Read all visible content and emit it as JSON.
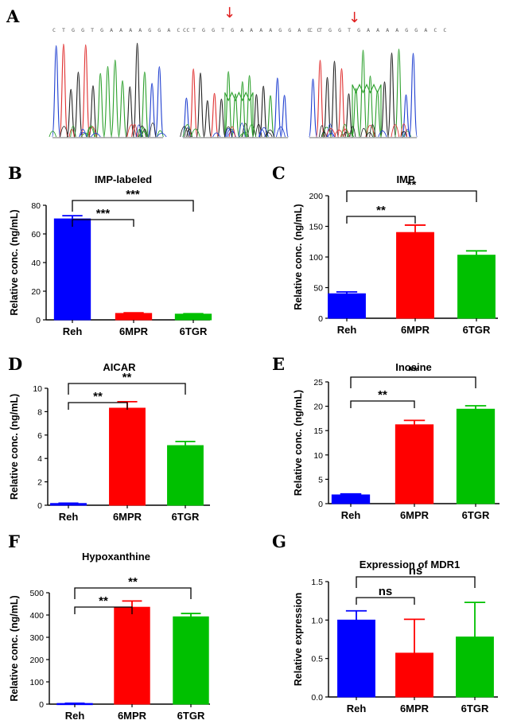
{
  "panel_a": {
    "letter": "A",
    "sequences": [
      "C T G G T G A A A A G G A C C",
      "C T G G T G A A A A G G A C C",
      "C T G G T G A A A A G G A C C"
    ],
    "arrow": "↓",
    "arrow_color": "#e02020",
    "trace_colors": {
      "A": "#2ca02c",
      "C": "#1f3fd0",
      "G": "#222222",
      "T": "#e03030"
    }
  },
  "colors": {
    "Reh": "#0000ff",
    "6MPR": "#ff0000",
    "6TGR": "#00c000"
  },
  "chart_data": [
    {
      "id": "B",
      "letter": "B",
      "type": "bar",
      "title": "IMP-labeled",
      "categories": [
        "Reh",
        "6MPR",
        "6TGR"
      ],
      "values": [
        70.5,
        4.5,
        4.0
      ],
      "errors": [
        2.2,
        0.4,
        0.3
      ],
      "ylabel": "Relative conc. (ng/mL)",
      "xlabel": "",
      "ylim": [
        0,
        80
      ],
      "yticks": [
        "0",
        "20",
        "40",
        "60",
        "80"
      ],
      "significance": [
        {
          "from": 0,
          "to": 1,
          "label": "***"
        },
        {
          "from": 0,
          "to": 2,
          "label": "***"
        }
      ]
    },
    {
      "id": "C",
      "letter": "C",
      "type": "bar",
      "title": "IMP",
      "categories": [
        "Reh",
        "6MPR",
        "6TGR"
      ],
      "values": [
        40,
        140,
        103
      ],
      "errors": [
        3,
        12,
        7
      ],
      "ylabel": "Relative conc. (ng/mL)",
      "xlabel": "",
      "ylim": [
        0,
        200
      ],
      "yticks": [
        "0",
        "50",
        "100",
        "150",
        "200"
      ],
      "significance": [
        {
          "from": 0,
          "to": 1,
          "label": "**"
        },
        {
          "from": 0,
          "to": 2,
          "label": "**"
        }
      ]
    },
    {
      "id": "D",
      "letter": "D",
      "type": "bar",
      "title": "AICAR",
      "categories": [
        "Reh",
        "6MPR",
        "6TGR"
      ],
      "values": [
        0.15,
        8.3,
        5.1
      ],
      "errors": [
        0.03,
        0.55,
        0.35
      ],
      "ylabel": "Relative conc. (ng/mL)",
      "xlabel": "",
      "ylim": [
        0,
        10
      ],
      "yticks": [
        "0",
        "2",
        "4",
        "6",
        "8",
        "10"
      ],
      "significance": [
        {
          "from": 0,
          "to": 1,
          "label": "**"
        },
        {
          "from": 0,
          "to": 2,
          "label": "**"
        }
      ]
    },
    {
      "id": "E",
      "letter": "E",
      "type": "bar",
      "title": "Inosine",
      "categories": [
        "Reh",
        "6MPR",
        "6TGR"
      ],
      "values": [
        1.8,
        16.2,
        19.4
      ],
      "errors": [
        0.2,
        0.9,
        0.7
      ],
      "ylabel": "Relative conc. (ng/mL)",
      "xlabel": "",
      "ylim": [
        0,
        25
      ],
      "yticks": [
        "0",
        "5",
        "10",
        "15",
        "20",
        "25"
      ],
      "significance": [
        {
          "from": 0,
          "to": 1,
          "label": "**"
        },
        {
          "from": 0,
          "to": 2,
          "label": "**"
        }
      ]
    },
    {
      "id": "F",
      "letter": "F",
      "type": "bar",
      "title": "Hypoxanthine",
      "categories": [
        "Reh",
        "6MPR",
        "6TGR"
      ],
      "values": [
        3,
        435,
        392
      ],
      "errors": [
        1,
        28,
        15
      ],
      "ylabel": "Relative conc. (ng/mL)",
      "xlabel": "",
      "ylim": [
        0,
        500
      ],
      "yticks": [
        "0",
        "100",
        "200",
        "300",
        "400",
        "500"
      ],
      "significance": [
        {
          "from": 0,
          "to": 1,
          "label": "**"
        },
        {
          "from": 0,
          "to": 2,
          "label": "**"
        }
      ]
    },
    {
      "id": "G",
      "letter": "G",
      "type": "bar",
      "title": "Expression of MDR1",
      "categories": [
        "Reh",
        "6MPR",
        "6TGR"
      ],
      "values": [
        1.0,
        0.57,
        0.78
      ],
      "errors": [
        0.12,
        0.44,
        0.45
      ],
      "ylabel": "Relative expression",
      "xlabel": "",
      "ylim": [
        0,
        1.5
      ],
      "yticks": [
        "0.0",
        "0.5",
        "1.0",
        "1.5"
      ],
      "significance": [
        {
          "from": 0,
          "to": 1,
          "label": "ns"
        },
        {
          "from": 0,
          "to": 2,
          "label": "ns"
        }
      ]
    }
  ]
}
